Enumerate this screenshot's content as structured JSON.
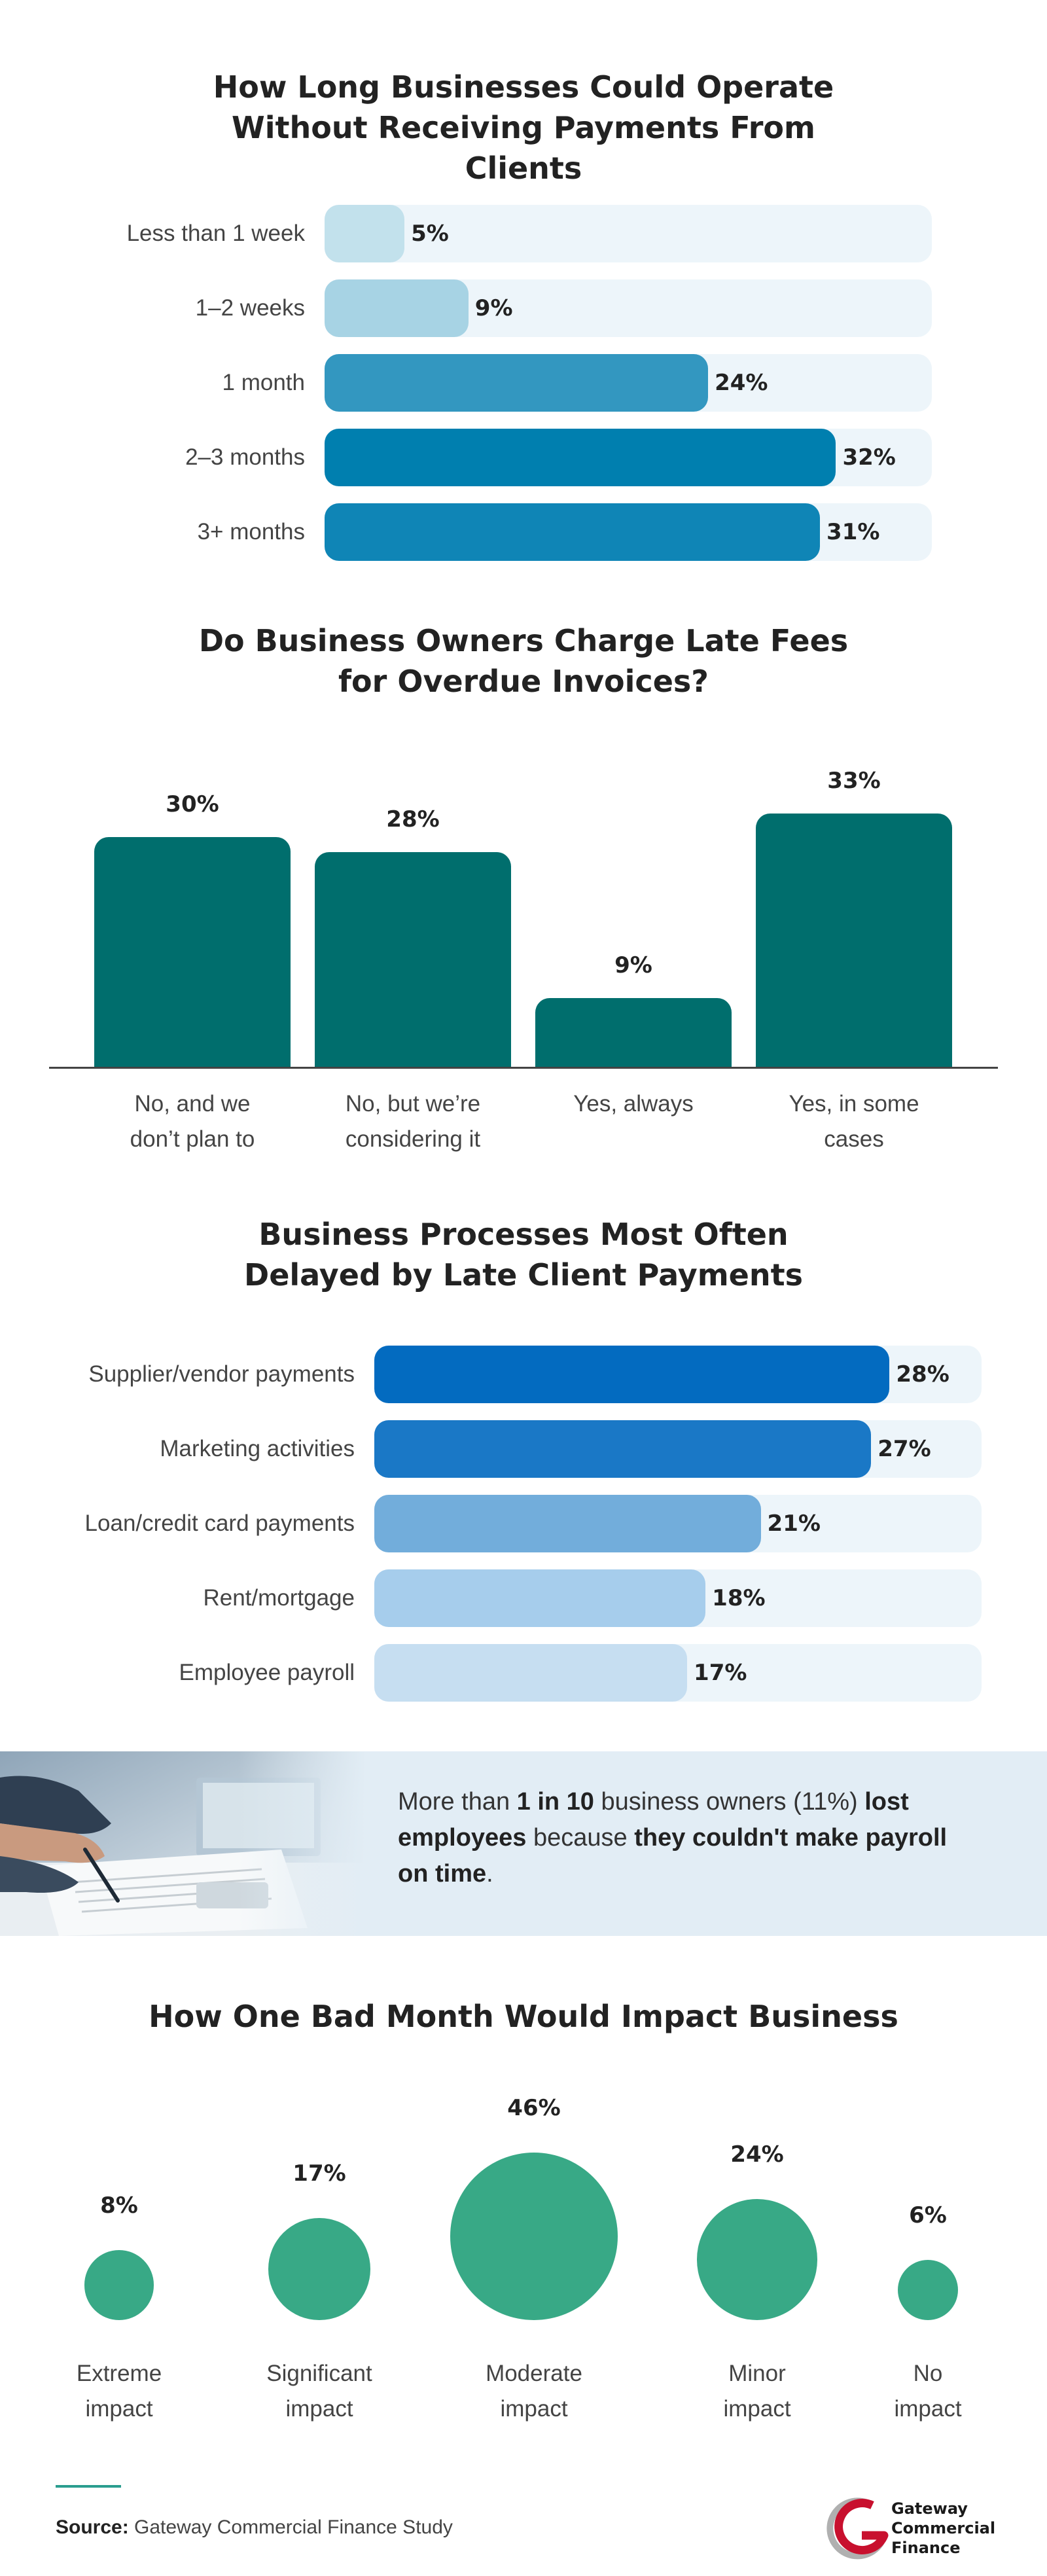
{
  "chart_data": [
    {
      "type": "bar",
      "orientation": "horizontal",
      "title": "How Long Businesses Could Operate Without Receiving Payments From Clients",
      "categories": [
        "Less than 1 week",
        "1–2 weeks",
        "1 month",
        "2–3 months",
        "3+ months"
      ],
      "values": [
        5,
        9,
        24,
        32,
        31
      ],
      "value_labels": [
        "5%",
        "9%",
        "24%",
        "32%",
        "31%"
      ],
      "colors": [
        "#c2e1ec",
        "#a7d3e4",
        "#3397c0",
        "#007faf",
        "#0f85b6"
      ],
      "track_color": "#edf5fa",
      "xlim": [
        0,
        38
      ]
    },
    {
      "type": "bar",
      "orientation": "vertical",
      "title": "Do Business Owners Charge Late Fees for Overdue Invoices?",
      "categories": [
        [
          "No, and we",
          "don’t plan to"
        ],
        [
          "No, but we’re",
          "considering it"
        ],
        [
          "Yes, always"
        ],
        [
          "Yes, in some",
          "cases"
        ]
      ],
      "values": [
        30,
        28,
        9,
        33
      ],
      "value_labels": [
        "30%",
        "28%",
        "9%",
        "33%"
      ],
      "color": "#006e6d",
      "ylim": [
        0,
        35
      ]
    },
    {
      "type": "bar",
      "orientation": "horizontal",
      "title": "Business Processes Most Often Delayed by Late Client Payments",
      "categories": [
        "Supplier/vendor payments",
        "Marketing activities",
        "Loan/credit card payments",
        "Rent/mortgage",
        "Employee payroll"
      ],
      "values": [
        28,
        27,
        21,
        18,
        17
      ],
      "value_labels": [
        "28%",
        "27%",
        "21%",
        "18%",
        "17%"
      ],
      "colors": [
        "#036bc0",
        "#1a78c6",
        "#72addb",
        "#a6cdec",
        "#c6def1"
      ],
      "track_color": "#edf5fa",
      "xlim": [
        0,
        33
      ]
    },
    {
      "type": "scatter",
      "style": "bubble",
      "title": "How One Bad Month Would Impact Business",
      "categories": [
        [
          "Extreme",
          "impact"
        ],
        [
          "Significant",
          "impact"
        ],
        [
          "Moderate",
          "impact"
        ],
        [
          "Minor",
          "impact"
        ],
        [
          "No",
          "impact"
        ]
      ],
      "values": [
        8,
        17,
        46,
        24,
        6
      ],
      "value_labels": [
        "8%",
        "17%",
        "46%",
        "24%",
        "6%"
      ],
      "color": "#38a986"
    }
  ],
  "callout": {
    "p1": "More than ",
    "b1": "1 in 10",
    "p2": " business owners (11%) ",
    "b2": "lost employees",
    "p3": " because ",
    "b3": "they couldn't make payroll on time",
    "p4": "."
  },
  "source": {
    "label": "Source:",
    "text": " Gateway Commercial Finance Study"
  },
  "logo": {
    "line1": "Gateway",
    "line2": "Commercial",
    "line3": "Finance",
    "color_red": "#c8102e",
    "color_grey": "#9a9a9a"
  }
}
